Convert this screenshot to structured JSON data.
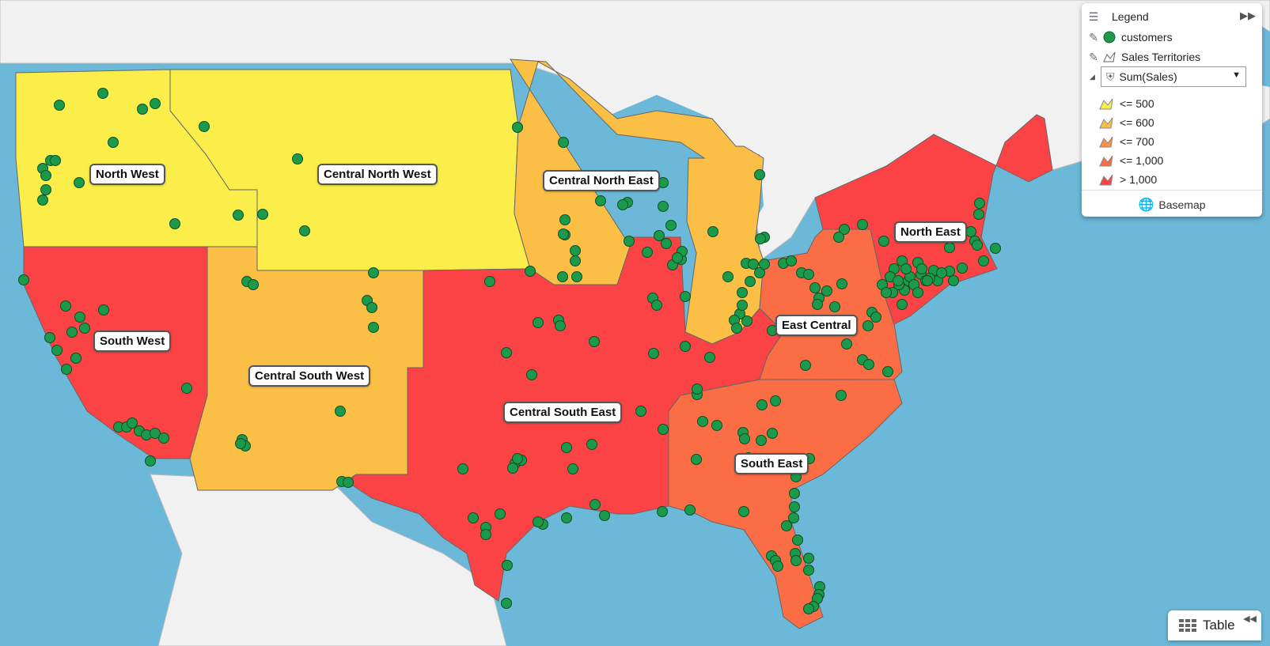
{
  "legend": {
    "title": "Legend",
    "layers": [
      "customers",
      "Sales Territories"
    ],
    "measure": "Sum(Sales)",
    "classes": [
      {
        "label": "<= 500",
        "color": "#fbee4a"
      },
      {
        "label": "<= 600",
        "color": "#fbbf45"
      },
      {
        "label": "<= 700",
        "color": "#fb9143"
      },
      {
        "label": "<= 1,000",
        "color": "#fb6d45"
      },
      {
        "label": "> 1,000",
        "color": "#fb4345"
      }
    ],
    "basemap_label": "Basemap"
  },
  "table_button": "Table",
  "regions": [
    {
      "name": "North West",
      "color": "#fbee4a"
    },
    {
      "name": "Central North West",
      "color": "#fbee4a"
    },
    {
      "name": "South West",
      "color": "#fb4345"
    },
    {
      "name": "Central South West",
      "color": "#fbbf45"
    },
    {
      "name": "Central North East",
      "color": "#fbbf45"
    },
    {
      "name": "Central South East",
      "color": "#fb4345"
    },
    {
      "name": "East Central",
      "color": "#fb6d45"
    },
    {
      "name": "North East",
      "color": "#fb4345"
    },
    {
      "name": "South East",
      "color": "#fb6d45"
    }
  ],
  "marker_color": "#1a9a4a"
}
